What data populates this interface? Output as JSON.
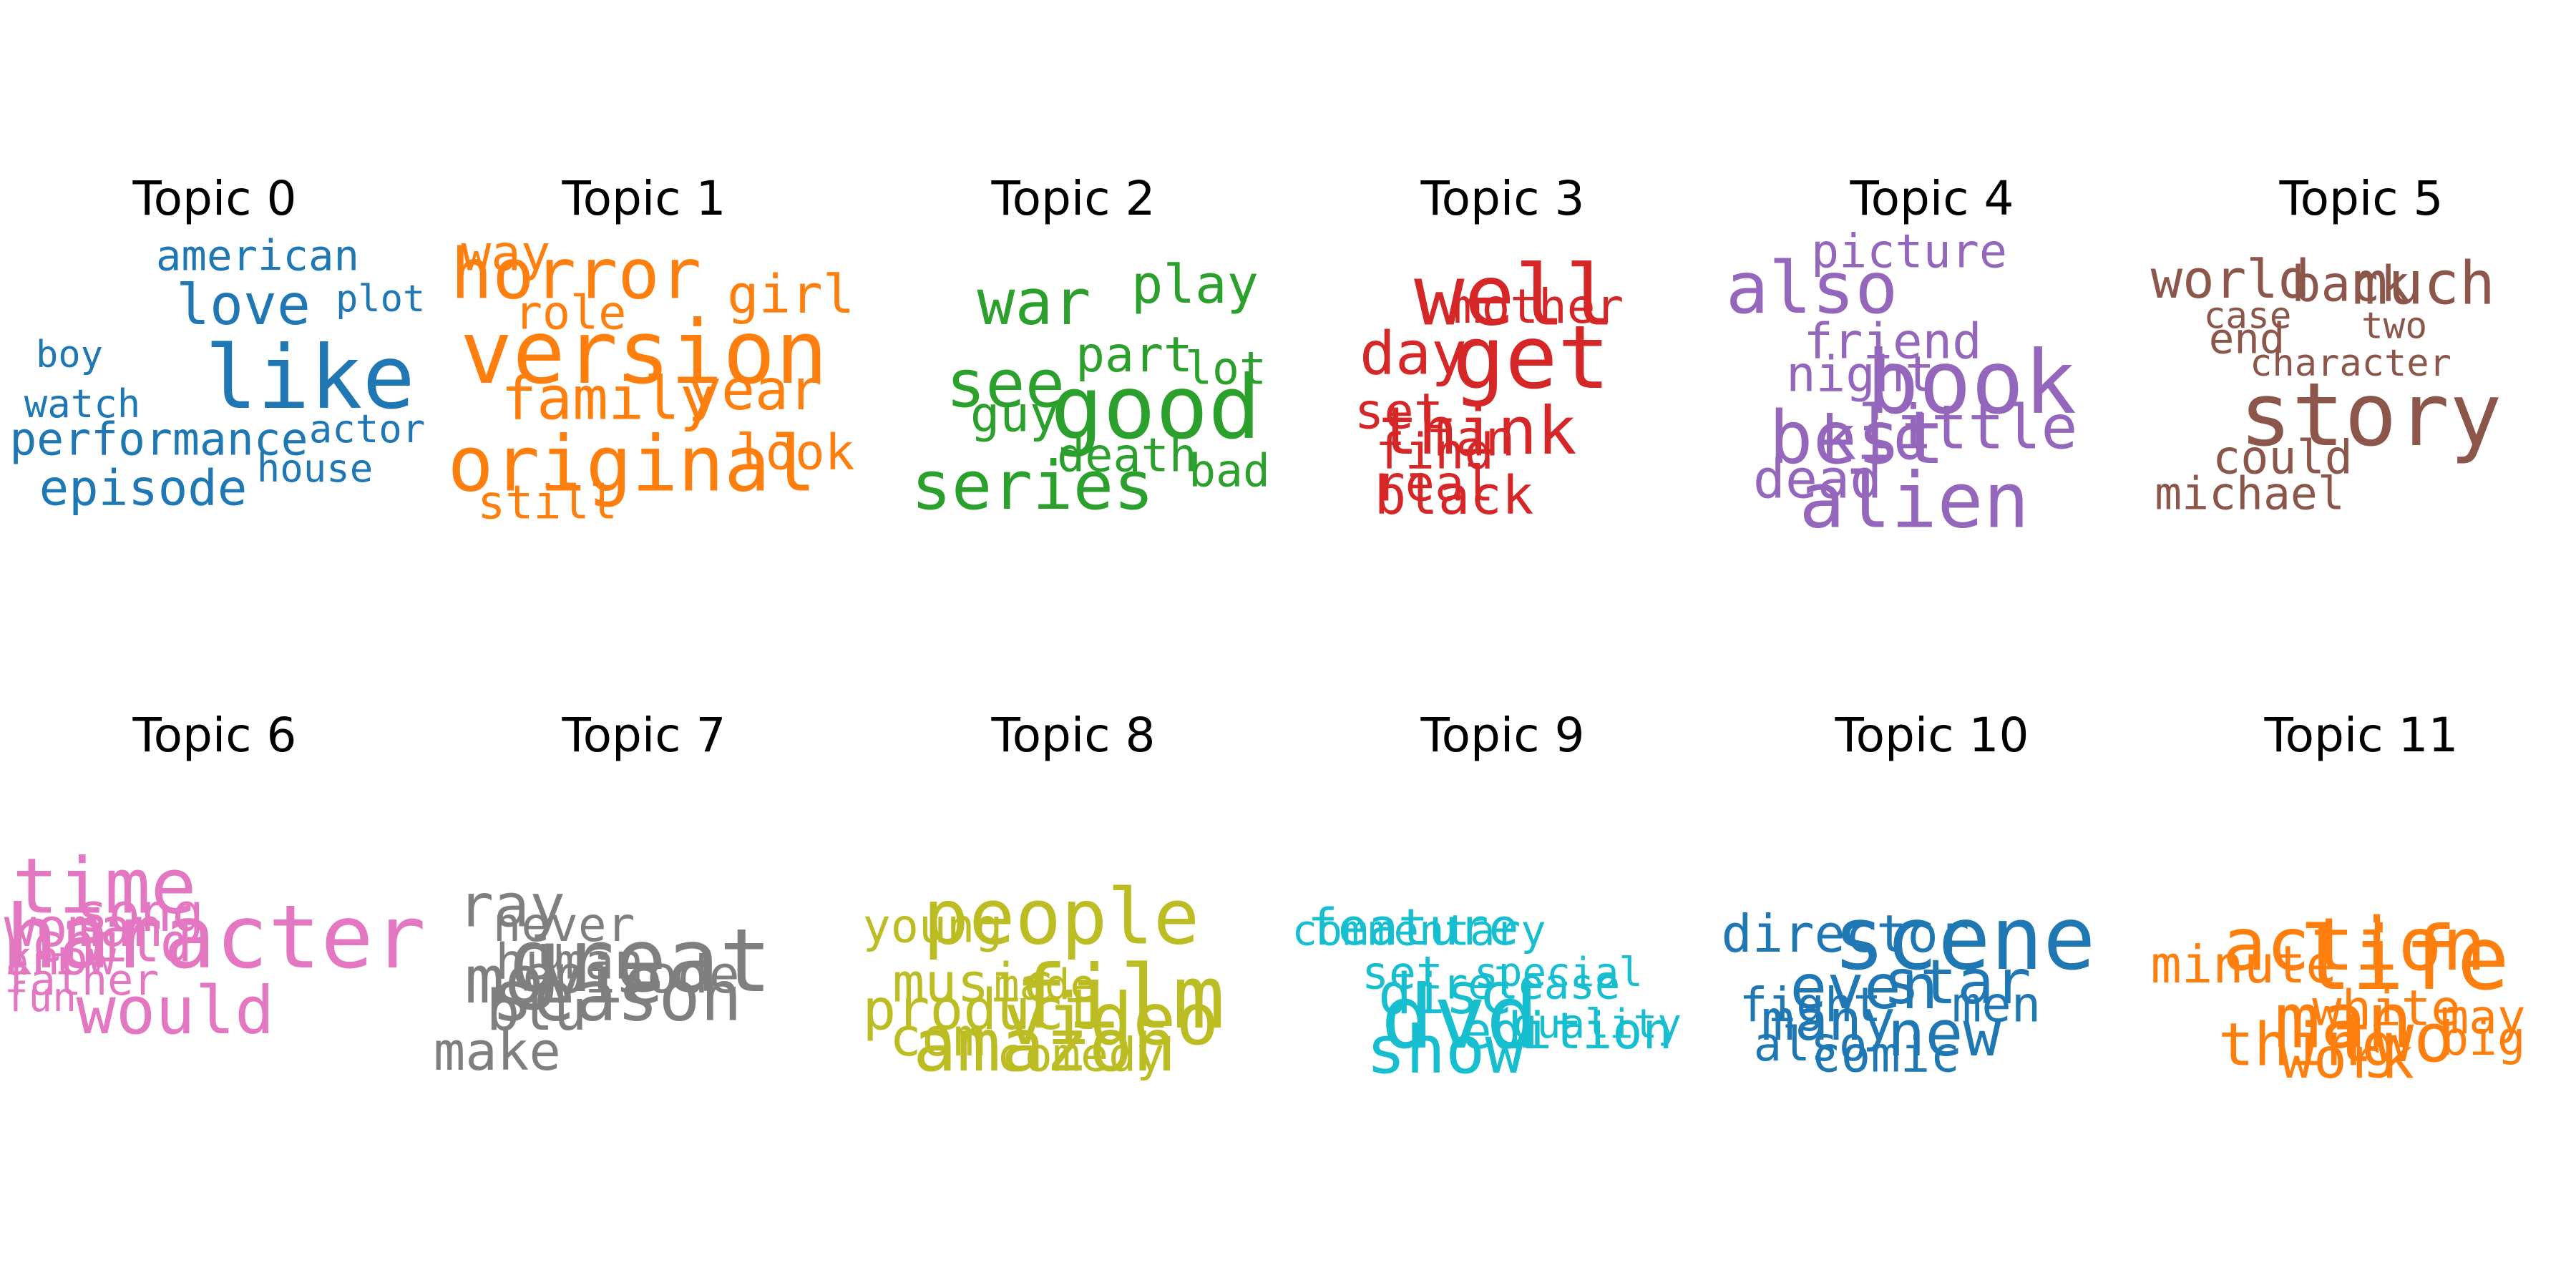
{
  "chart_data": {
    "type": "wordcloud",
    "topics": [
      {
        "title": "Topic 0",
        "color": "#1f77b4",
        "words": [
          {
            "text": "like",
            "weight": 1.0
          },
          {
            "text": "love",
            "weight": 0.55
          },
          {
            "text": "episode",
            "weight": 0.45
          },
          {
            "text": "performance",
            "weight": 0.38
          },
          {
            "text": "american",
            "weight": 0.34
          },
          {
            "text": "actor",
            "weight": 0.28
          },
          {
            "text": "watch",
            "weight": 0.28
          },
          {
            "text": "house",
            "weight": 0.27
          },
          {
            "text": "boy",
            "weight": 0.25
          },
          {
            "text": "plot",
            "weight": 0.25
          }
        ]
      },
      {
        "title": "Topic 1",
        "color": "#ff7f0e",
        "words": [
          {
            "text": "version",
            "weight": 1.0
          },
          {
            "text": "original",
            "weight": 0.85
          },
          {
            "text": "horror",
            "weight": 0.75
          },
          {
            "text": "family",
            "weight": 0.6
          },
          {
            "text": "year",
            "weight": 0.55
          },
          {
            "text": "girl",
            "weight": 0.5
          },
          {
            "text": "look",
            "weight": 0.45
          },
          {
            "text": "way",
            "weight": 0.45
          },
          {
            "text": "role",
            "weight": 0.4
          },
          {
            "text": "still",
            "weight": 0.4
          }
        ]
      },
      {
        "title": "Topic 2",
        "color": "#2ca02c",
        "words": [
          {
            "text": "good",
            "weight": 1.0
          },
          {
            "text": "series",
            "weight": 0.72
          },
          {
            "text": "see",
            "weight": 0.7
          },
          {
            "text": "war",
            "weight": 0.65
          },
          {
            "text": "play",
            "weight": 0.5
          },
          {
            "text": "guy",
            "weight": 0.45
          },
          {
            "text": "part",
            "weight": 0.44
          },
          {
            "text": "death",
            "weight": 0.4
          },
          {
            "text": "lot",
            "weight": 0.38
          },
          {
            "text": "bad",
            "weight": 0.38
          }
        ]
      },
      {
        "title": "Topic 3",
        "color": "#d62728",
        "words": [
          {
            "text": "get",
            "weight": 1.0
          },
          {
            "text": "well",
            "weight": 0.95
          },
          {
            "text": "think",
            "weight": 0.7
          },
          {
            "text": "day",
            "weight": 0.6
          },
          {
            "text": "black",
            "weight": 0.5
          },
          {
            "text": "fan",
            "weight": 0.45
          },
          {
            "text": "set",
            "weight": 0.45
          },
          {
            "text": "find",
            "weight": 0.45
          },
          {
            "text": "real",
            "weight": 0.45
          },
          {
            "text": "mother",
            "weight": 0.42
          }
        ]
      },
      {
        "title": "Topic 4",
        "color": "#9467bd",
        "words": [
          {
            "text": "book",
            "weight": 1.0
          },
          {
            "text": "alien",
            "weight": 0.85
          },
          {
            "text": "best",
            "weight": 0.8
          },
          {
            "text": "also",
            "weight": 0.78
          },
          {
            "text": "little",
            "weight": 0.62
          },
          {
            "text": "kid",
            "weight": 0.62
          },
          {
            "text": "dead",
            "weight": 0.52
          },
          {
            "text": "friend",
            "weight": 0.45
          },
          {
            "text": "night",
            "weight": 0.45
          },
          {
            "text": "picture",
            "weight": 0.4
          }
        ]
      },
      {
        "title": "Topic 5",
        "color": "#8c564b",
        "words": [
          {
            "text": "story",
            "weight": 1.0
          },
          {
            "text": "much",
            "weight": 0.6
          },
          {
            "text": "world",
            "weight": 0.5
          },
          {
            "text": "back",
            "weight": 0.45
          },
          {
            "text": "could",
            "weight": 0.4
          },
          {
            "text": "michael",
            "weight": 0.38
          },
          {
            "text": "end",
            "weight": 0.33
          },
          {
            "text": "character",
            "weight": 0.25
          },
          {
            "text": "case",
            "weight": 0.24
          },
          {
            "text": "two",
            "weight": 0.24
          }
        ]
      },
      {
        "title": "Topic 6",
        "color": "#e377c2",
        "words": [
          {
            "text": "character",
            "weight": 1.0
          },
          {
            "text": "time",
            "weight": 0.85
          },
          {
            "text": "would",
            "weight": 0.7
          },
          {
            "text": "child",
            "weight": 0.52
          },
          {
            "text": "woman",
            "weight": 0.5
          },
          {
            "text": "song",
            "weight": 0.5
          },
          {
            "text": "know",
            "weight": 0.4
          },
          {
            "text": "father",
            "weight": 0.35
          },
          {
            "text": "fun",
            "weight": 0.3
          },
          {
            "text": "art",
            "weight": 0.28
          }
        ]
      },
      {
        "title": "Topic 7",
        "color": "#7f7f7f",
        "words": [
          {
            "text": "great",
            "weight": 1.0
          },
          {
            "text": "season",
            "weight": 0.75
          },
          {
            "text": "movie",
            "weight": 0.7
          },
          {
            "text": "ray",
            "weight": 0.6
          },
          {
            "text": "blu",
            "weight": 0.55
          },
          {
            "text": "make",
            "weight": 0.5
          },
          {
            "text": "episode",
            "weight": 0.48
          },
          {
            "text": "human",
            "weight": 0.45
          },
          {
            "text": "never",
            "weight": 0.42
          },
          {
            "text": "u",
            "weight": 0.4
          }
        ]
      },
      {
        "title": "Topic 8",
        "color": "#bcbd22",
        "words": [
          {
            "text": "film",
            "weight": 1.0
          },
          {
            "text": "people",
            "weight": 0.85
          },
          {
            "text": "amazon",
            "weight": 0.8
          },
          {
            "text": "video",
            "weight": 0.78
          },
          {
            "text": "product",
            "weight": 0.55
          },
          {
            "text": "music",
            "weight": 0.52
          },
          {
            "text": "com",
            "weight": 0.5
          },
          {
            "text": "comedy",
            "weight": 0.4
          },
          {
            "text": "young",
            "weight": 0.4
          },
          {
            "text": "made",
            "weight": 0.33
          }
        ]
      },
      {
        "title": "Topic 9",
        "color": "#17becf",
        "words": [
          {
            "text": "dvd",
            "weight": 1.0
          },
          {
            "text": "show",
            "weight": 0.7
          },
          {
            "text": "disc",
            "weight": 0.55
          },
          {
            "text": "edition",
            "weight": 0.46
          },
          {
            "text": "feature",
            "weight": 0.46
          },
          {
            "text": "set",
            "weight": 0.38
          },
          {
            "text": "commentary",
            "weight": 0.33
          },
          {
            "text": "release",
            "weight": 0.33
          },
          {
            "text": "special",
            "weight": 0.3
          },
          {
            "text": "quality",
            "weight": 0.3
          }
        ]
      },
      {
        "title": "Topic 10",
        "color": "#1f77b4",
        "words": [
          {
            "text": "scene",
            "weight": 1.0
          },
          {
            "text": "new",
            "weight": 0.65
          },
          {
            "text": "even",
            "weight": 0.63
          },
          {
            "text": "star",
            "weight": 0.63
          },
          {
            "text": "many",
            "weight": 0.55
          },
          {
            "text": "director",
            "weight": 0.48
          },
          {
            "text": "comic",
            "weight": 0.45
          },
          {
            "text": "men",
            "weight": 0.45
          },
          {
            "text": "fight",
            "weight": 0.42
          },
          {
            "text": "also",
            "weight": 0.42
          }
        ]
      },
      {
        "title": "Topic 11",
        "color": "#ff7f0e",
        "words": [
          {
            "text": "life",
            "weight": 1.0
          },
          {
            "text": "man",
            "weight": 0.85
          },
          {
            "text": "action",
            "weight": 0.8
          },
          {
            "text": "two",
            "weight": 0.72
          },
          {
            "text": "thing",
            "weight": 0.6
          },
          {
            "text": "work",
            "weight": 0.55
          },
          {
            "text": "minute",
            "weight": 0.48
          },
          {
            "text": "white",
            "weight": 0.45
          },
          {
            "text": "may",
            "weight": 0.42
          },
          {
            "text": "big",
            "weight": 0.42
          }
        ]
      }
    ]
  }
}
